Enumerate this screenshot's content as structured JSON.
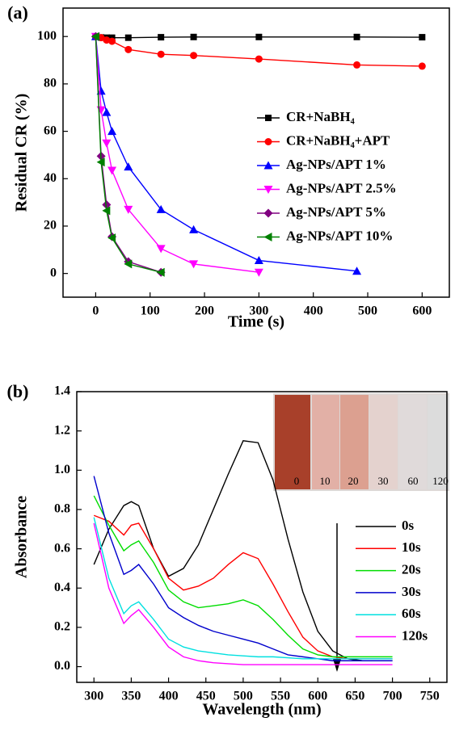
{
  "chart_data": [
    {
      "type": "line",
      "panel_label": "(a)",
      "x_label": "Time (s)",
      "y_label": "Residual CR (%)",
      "xlim": [
        -60,
        650
      ],
      "xticks": [
        0,
        100,
        200,
        300,
        400,
        500,
        600
      ],
      "ylim": [
        -10,
        112
      ],
      "yticks": [
        0,
        20,
        40,
        60,
        80,
        100
      ],
      "series": [
        {
          "name": "CR+NaBH₄",
          "color": "#000000",
          "marker": "square",
          "x": [
            0,
            10,
            20,
            30,
            60,
            120,
            180,
            300,
            480,
            600
          ],
          "values": [
            100,
            99.6,
            99.5,
            99.5,
            99.5,
            99.7,
            99.8,
            99.8,
            99.8,
            99.7
          ]
        },
        {
          "name": "CR+NaBH₄+APT",
          "color": "#ff0000",
          "marker": "circle",
          "x": [
            0,
            10,
            20,
            30,
            60,
            120,
            180,
            300,
            480,
            600
          ],
          "values": [
            100,
            99.5,
            98.5,
            98,
            94.5,
            92.5,
            92,
            90.5,
            88,
            87.5
          ]
        },
        {
          "name": "Ag-NPs/APT  1%",
          "color": "#0000ff",
          "marker": "triangle-up",
          "x": [
            0,
            10,
            20,
            30,
            60,
            120,
            180,
            300,
            480
          ],
          "values": [
            100,
            77,
            68,
            60,
            45,
            27,
            18.5,
            5.5,
            1
          ]
        },
        {
          "name": "Ag-NPs/APT  2.5%",
          "color": "#ff00ff",
          "marker": "triangle-down",
          "x": [
            0,
            10,
            20,
            30,
            60,
            120,
            180,
            300
          ],
          "values": [
            100,
            69,
            55,
            43.5,
            27,
            10.5,
            4,
            0.5
          ]
        },
        {
          "name": "Ag-NPs/APT  5%",
          "color": "#800080",
          "marker": "diamond",
          "x": [
            0,
            10,
            20,
            30,
            60,
            120
          ],
          "values": [
            100,
            49.5,
            29,
            15.5,
            5,
            0.5
          ]
        },
        {
          "name": "Ag-NPs/APT  10%",
          "color": "#008000",
          "marker": "triangle-left",
          "x": [
            0,
            10,
            20,
            30,
            60,
            120
          ],
          "values": [
            100,
            47,
            26.5,
            15,
            4,
            0.5
          ]
        }
      ]
    },
    {
      "type": "line",
      "panel_label": "(b)",
      "x_label": "Wavelength (nm)",
      "y_label": "Absorbance",
      "xlim": [
        277,
        773
      ],
      "xticks": [
        300,
        350,
        400,
        450,
        500,
        550,
        600,
        650,
        700,
        750
      ],
      "ylim": [
        -0.08,
        1.4
      ],
      "yticks": [
        {
          "value": 0,
          "label": "0.0"
        },
        0.2,
        0.4,
        0.6,
        0.8,
        {
          "value": 1,
          "label": "1.0"
        },
        1.2,
        1.4
      ],
      "inset_labels": [
        "0",
        "10",
        "20",
        "30",
        "60",
        "120"
      ],
      "x": [
        300,
        320,
        340,
        350,
        360,
        380,
        400,
        420,
        440,
        460,
        480,
        500,
        520,
        540,
        560,
        580,
        600,
        620,
        640,
        660,
        700
      ],
      "series": [
        {
          "name": "0s",
          "color": "#000000",
          "values": [
            0.52,
            0.7,
            0.82,
            0.84,
            0.82,
            0.6,
            0.46,
            0.5,
            0.62,
            0.8,
            0.98,
            1.15,
            1.14,
            0.95,
            0.65,
            0.38,
            0.18,
            0.08,
            0.04,
            0.03,
            0.03
          ]
        },
        {
          "name": "10s",
          "color": "#ff0000",
          "values": [
            0.77,
            0.74,
            0.67,
            0.72,
            0.73,
            0.6,
            0.45,
            0.39,
            0.41,
            0.45,
            0.52,
            0.58,
            0.55,
            0.42,
            0.28,
            0.15,
            0.08,
            0.05,
            0.04,
            0.04,
            0.04
          ]
        },
        {
          "name": "20s",
          "color": "#00dd00",
          "values": [
            0.87,
            0.72,
            0.59,
            0.62,
            0.64,
            0.53,
            0.39,
            0.33,
            0.3,
            0.31,
            0.32,
            0.34,
            0.31,
            0.24,
            0.16,
            0.09,
            0.06,
            0.05,
            0.05,
            0.05,
            0.05
          ]
        },
        {
          "name": "30s",
          "color": "#0000cc",
          "values": [
            0.97,
            0.68,
            0.47,
            0.49,
            0.52,
            0.42,
            0.3,
            0.25,
            0.21,
            0.18,
            0.16,
            0.14,
            0.12,
            0.09,
            0.06,
            0.05,
            0.04,
            0.03,
            0.03,
            0.03,
            0.03
          ]
        },
        {
          "name": "60s",
          "color": "#00e0e0",
          "values": [
            0.76,
            0.45,
            0.27,
            0.31,
            0.33,
            0.24,
            0.14,
            0.1,
            0.08,
            0.07,
            0.06,
            0.055,
            0.05,
            0.05,
            0.045,
            0.04,
            0.04,
            0.04,
            0.04,
            0.04,
            0.04
          ]
        },
        {
          "name": "120s",
          "color": "#ff00ff",
          "values": [
            0.73,
            0.4,
            0.22,
            0.26,
            0.29,
            0.2,
            0.1,
            0.05,
            0.03,
            0.02,
            0.015,
            0.01,
            0.01,
            0.01,
            0.01,
            0.01,
            0.01,
            0.01,
            0.01,
            0.01,
            0.01
          ]
        }
      ]
    }
  ]
}
